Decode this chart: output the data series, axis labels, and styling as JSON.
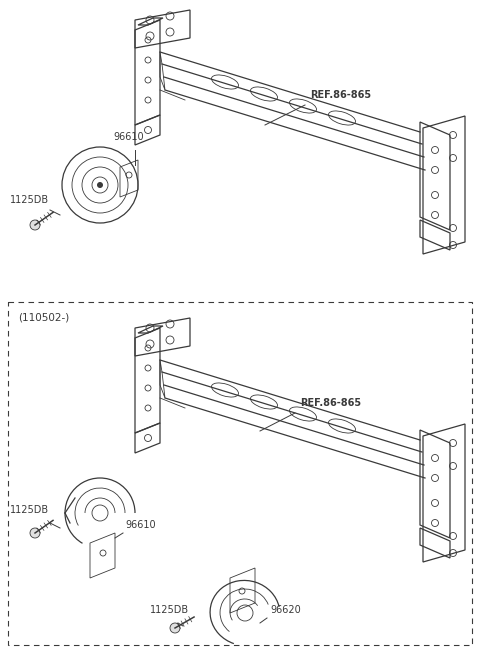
{
  "bg_color": "#ffffff",
  "line_color": "#3a3a3a",
  "fig_width": 4.8,
  "fig_height": 6.55,
  "dpi": 100,
  "top_label_ref": "REF.86-865",
  "top_label_96610": "96610",
  "top_label_1125DB": "1125DB",
  "bot_label_ref": "REF.86-865",
  "bot_label_96610": "96610",
  "bot_label_96620": "96620",
  "bot_label_1125DB_1": "1125DB",
  "bot_label_1125DB_2": "1125DB",
  "bot_box_label": "(110502-)"
}
